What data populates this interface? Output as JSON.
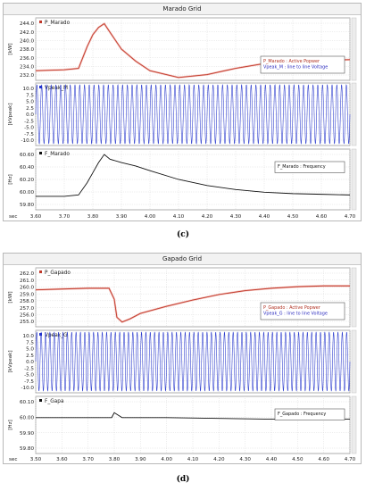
{
  "figure_c": {
    "caption": "(c)",
    "window_title": "Marado Grid",
    "x_axis_unit": "sec",
    "x_ticks": [
      "3.60",
      "3.70",
      "3.80",
      "3.90",
      "4.00",
      "4.10",
      "4.20",
      "4.30",
      "4.40",
      "4.50",
      "4.60",
      "4.70"
    ],
    "plots": [
      {
        "label": "P_Marado",
        "unit": "[kW]",
        "y_ticks": [
          "244.0",
          "242.0",
          "240.0",
          "238.0",
          "236.0",
          "234.0",
          "232.0"
        ],
        "legend_lines": [
          "P_Marado : Active Popwer",
          "Vpeak_M : line to line Voltage"
        ]
      },
      {
        "label": "Vpeak_M",
        "unit": "[kVpeak]",
        "y_ticks": [
          "10.0",
          "7.5",
          "5.0",
          "2.5",
          "0.0",
          "-2.5",
          "-5.0",
          "-7.5",
          "-10.0"
        ]
      },
      {
        "label": "F_Marado",
        "unit": "[Hz]",
        "y_ticks": [
          "60.60",
          "60.40",
          "60.20",
          "60.00",
          "59.80"
        ],
        "legend_lines": [
          "F_Marado : Frequency"
        ]
      }
    ]
  },
  "figure_d": {
    "caption": "(d)",
    "window_title": "Gapado Grid",
    "x_axis_unit": "sec",
    "x_ticks": [
      "3.50",
      "3.60",
      "3.70",
      "3.80",
      "3.90",
      "4.00",
      "4.10",
      "4.20",
      "4.30",
      "4.40",
      "4.50",
      "4.60",
      "4.70"
    ],
    "plots": [
      {
        "label": "P_Gapado",
        "unit": "[kW]",
        "y_ticks": [
          "262.0",
          "261.0",
          "260.0",
          "259.0",
          "258.0",
          "257.0",
          "256.0",
          "255.0"
        ],
        "legend_lines": [
          "P_Gapado : Active Popwer",
          "Vpeak_G : line to line Voltage"
        ]
      },
      {
        "label": "Vpeak_G",
        "unit": "[kVpeak]",
        "y_ticks": [
          "10.0",
          "7.5",
          "5.0",
          "2.5",
          "0.0",
          "-2.5",
          "-5.0",
          "-7.5",
          "-10.0"
        ]
      },
      {
        "label": "F_Gapa",
        "unit": "[Hz]",
        "y_ticks": [
          "60.10",
          "60.00",
          "59.90",
          "59.80"
        ],
        "legend_lines": [
          "F_Gapado : Frequency"
        ]
      }
    ]
  },
  "colors": {
    "power": "#c0392b",
    "voltage": "#2233cc",
    "frequency": "#111111",
    "legend_power": "#b03020",
    "legend_voltage": "#3030c0"
  },
  "chart_data": [
    {
      "type": "line",
      "title": "Marado Grid",
      "xlabel": "sec",
      "xlim": [
        3.6,
        4.7
      ],
      "series": [
        {
          "name": "P_Marado",
          "ylabel": "[kW]",
          "ylim": [
            232,
            245
          ],
          "x": [
            3.6,
            3.7,
            3.75,
            3.78,
            3.8,
            3.82,
            3.84,
            3.86,
            3.9,
            3.95,
            4.0,
            4.1,
            4.2,
            4.3,
            4.4,
            4.5,
            4.6,
            4.7
          ],
          "y": [
            234.0,
            234.2,
            234.5,
            239.0,
            241.5,
            243.0,
            243.8,
            242.0,
            238.5,
            236.0,
            234.0,
            232.6,
            233.2,
            234.5,
            235.5,
            236.0,
            236.2,
            236.3
          ]
        },
        {
          "name": "Vpeak_M",
          "ylabel": "[kVpeak]",
          "ylim": [
            -10,
            10
          ],
          "amplitude": 9.5
        },
        {
          "name": "F_Marado",
          "ylabel": "[Hz]",
          "ylim": [
            59.8,
            60.7
          ],
          "x": [
            3.6,
            3.7,
            3.75,
            3.78,
            3.8,
            3.82,
            3.84,
            3.86,
            3.9,
            3.95,
            4.0,
            4.1,
            4.2,
            4.3,
            4.4,
            4.5,
            4.6,
            4.7
          ],
          "y": [
            60.0,
            60.0,
            60.02,
            60.2,
            60.35,
            60.5,
            60.62,
            60.55,
            60.5,
            60.45,
            60.38,
            60.25,
            60.16,
            60.1,
            60.06,
            60.04,
            60.03,
            60.02
          ]
        }
      ]
    },
    {
      "type": "line",
      "title": "Gapado Grid",
      "xlabel": "sec",
      "xlim": [
        3.5,
        4.7
      ],
      "series": [
        {
          "name": "P_Gapado",
          "ylabel": "[kW]",
          "ylim": [
            255,
            262.5
          ],
          "x": [
            3.5,
            3.6,
            3.7,
            3.78,
            3.8,
            3.81,
            3.83,
            3.86,
            3.9,
            4.0,
            4.1,
            4.2,
            4.3,
            4.4,
            4.5,
            4.6,
            4.7
          ],
          "y": [
            259.7,
            259.8,
            259.9,
            259.9,
            258.5,
            256.2,
            255.6,
            256.0,
            256.7,
            257.6,
            258.4,
            259.1,
            259.6,
            259.9,
            260.1,
            260.2,
            260.2
          ]
        },
        {
          "name": "Vpeak_G",
          "ylabel": "[kVpeak]",
          "ylim": [
            -10,
            10
          ],
          "amplitude": 9.5
        },
        {
          "name": "F_Gapa",
          "ylabel": "[Hz]",
          "ylim": [
            59.78,
            60.13
          ],
          "x": [
            3.5,
            3.6,
            3.7,
            3.79,
            3.8,
            3.81,
            3.83,
            3.9,
            4.0,
            4.2,
            4.4,
            4.6,
            4.7
          ],
          "y": [
            60.0,
            60.0,
            60.0,
            60.0,
            60.03,
            60.02,
            60.0,
            60.0,
            60.0,
            59.995,
            59.99,
            59.99,
            59.99
          ]
        }
      ]
    }
  ]
}
